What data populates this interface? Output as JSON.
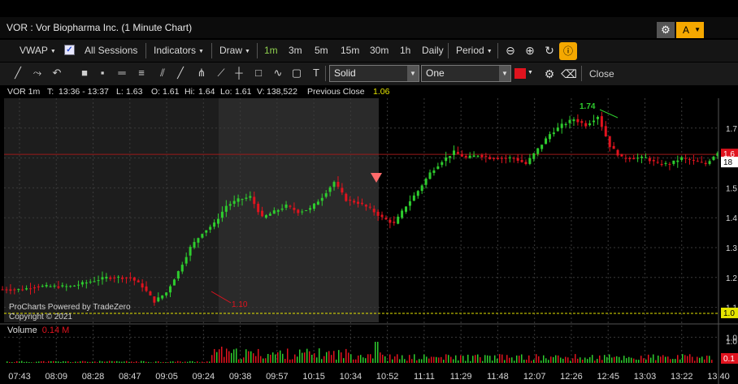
{
  "window": {
    "title": "VOR : Vor Biopharma Inc. (1 Minute Chart)"
  },
  "header_buttons": {
    "alert_label": "A"
  },
  "toolbar": {
    "vwap": "VWAP",
    "all_sessions": "All Sessions",
    "indicators": "Indicators",
    "draw": "Draw",
    "timeframes": [
      "1m",
      "3m",
      "5m",
      "15m",
      "30m",
      "1h",
      "Daily"
    ],
    "period": "Period"
  },
  "drawing_toolbar": {
    "line_style": "Solid",
    "line_width": "One",
    "line_color": "#e0131e",
    "close": "Close"
  },
  "info": {
    "symbol": "VOR 1m",
    "time_label": "T:",
    "time": "13:36 - 13:37",
    "low_label": "L:",
    "low": "1.63",
    "open_label": "O:",
    "open": "1.61",
    "high_label": "Hi:",
    "high": "1.64",
    "lo_label": "Lo:",
    "lo": "1.61",
    "vol_label": "V:",
    "volume": "138,522",
    "prev_close_label": "Previous Close",
    "prev_close": "1.06"
  },
  "volume_panel": {
    "label": "Volume",
    "value": "0.14 M"
  },
  "watermark": {
    "line1": "ProCharts Powered by TradeZero",
    "line2": "Copyright © 2021"
  },
  "chart_data": {
    "type": "candlestick",
    "x_tick_labels": [
      "07:43",
      "08:09",
      "08:28",
      "08:47",
      "09:05",
      "09:24",
      "09:38",
      "09:57",
      "10:15",
      "10:34",
      "10:52",
      "11:11",
      "11:29",
      "11:48",
      "12:07",
      "12:26",
      "12:45",
      "13:03",
      "13:22",
      "13:40"
    ],
    "y_tick_labels": [
      "1.7",
      "1.6",
      "1.5",
      "1.4",
      "1.3",
      "1.2",
      "1.1",
      "1.0"
    ],
    "ylim": [
      1.05,
      1.8
    ],
    "volume_tick_labels": [
      "1.0",
      "0.1"
    ],
    "price_markers": {
      "last": "1.6",
      "prev_close": "1.0",
      "volume_last": "0.1",
      "cursor": "18"
    },
    "annotations": {
      "high": "1.74",
      "low": "1.10"
    },
    "colors": {
      "up": "#2ecc2e",
      "down": "#e0131e",
      "prev_close_line": "#e5e500",
      "last_price_line": "#9b1b1b"
    },
    "series": {
      "close": [
        1.16,
        1.16,
        1.17,
        1.17,
        1.17,
        1.17,
        1.18,
        1.19,
        1.2,
        1.2,
        1.2,
        1.17,
        1.12,
        1.15,
        1.22,
        1.3,
        1.35,
        1.38,
        1.44,
        1.46,
        1.47,
        1.4,
        1.42,
        1.44,
        1.42,
        1.43,
        1.47,
        1.52,
        1.46,
        1.45,
        1.43,
        1.4,
        1.38,
        1.44,
        1.49,
        1.55,
        1.59,
        1.62,
        1.6,
        1.61,
        1.6,
        1.6,
        1.6,
        1.58,
        1.63,
        1.68,
        1.71,
        1.73,
        1.71,
        1.74,
        1.64,
        1.6,
        1.6,
        1.6,
        1.58,
        1.58,
        1.6,
        1.59,
        1.58,
        1.62
      ]
    }
  }
}
